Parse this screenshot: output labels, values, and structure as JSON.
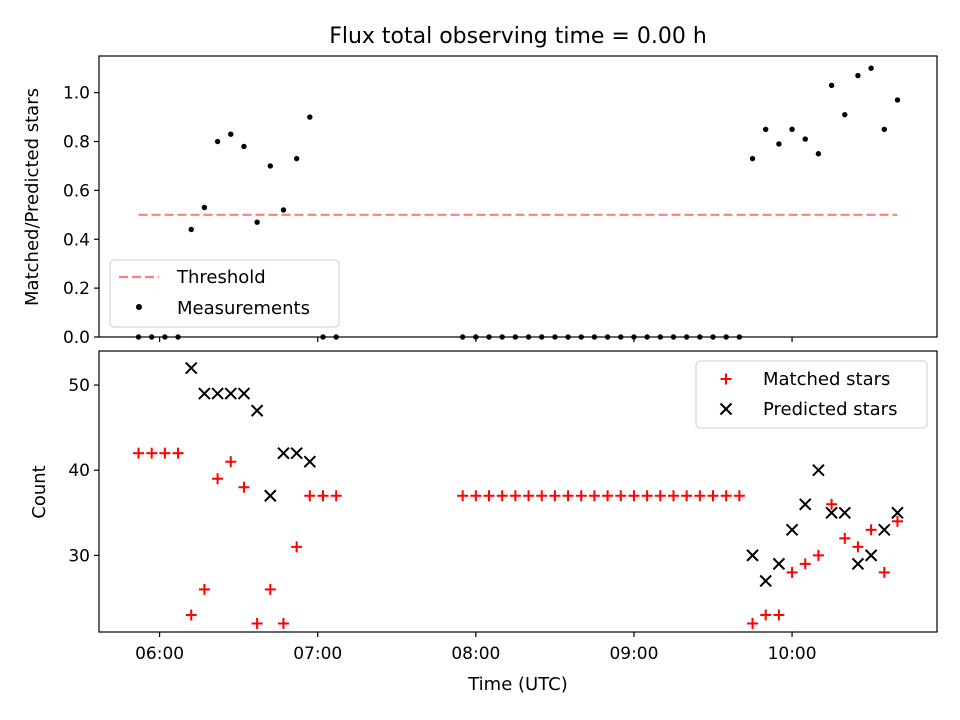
{
  "chart_data": [
    {
      "type": "scatter",
      "title": "Flux total observing time = 0.00 h",
      "xlabel": "",
      "ylabel": "Matched/Predicted stars",
      "ylim": [
        0,
        1.15
      ],
      "yticks": [
        "0.0",
        "0.2",
        "0.4",
        "0.6",
        "0.8",
        "1.0"
      ],
      "legend_position": "lower-left",
      "threshold": {
        "name": "Threshold",
        "value": 0.5,
        "x_start": "05:52",
        "x_end": "10:40",
        "color": "#ff7f7f",
        "style": "dashed"
      },
      "series": [
        {
          "name": "Measurements",
          "color": "#000000",
          "marker": "dot",
          "points": [
            [
              "05:52",
              0
            ],
            [
              "05:57",
              0
            ],
            [
              "06:02",
              0
            ],
            [
              "06:07",
              0
            ],
            [
              "06:12",
              0.44
            ],
            [
              "06:17",
              0.53
            ],
            [
              "06:22",
              0.8
            ],
            [
              "06:27",
              0.83
            ],
            [
              "06:32",
              0.78
            ],
            [
              "06:37",
              0.47
            ],
            [
              "06:42",
              0.7
            ],
            [
              "06:47",
              0.52
            ],
            [
              "06:52",
              0.73
            ],
            [
              "06:57",
              0.9
            ],
            [
              "07:02",
              0
            ],
            [
              "07:07",
              0
            ],
            [
              "07:55",
              0
            ],
            [
              "08:00",
              0
            ],
            [
              "08:05",
              0
            ],
            [
              "08:10",
              0
            ],
            [
              "08:15",
              0
            ],
            [
              "08:20",
              0
            ],
            [
              "08:25",
              0
            ],
            [
              "08:30",
              0
            ],
            [
              "08:35",
              0
            ],
            [
              "08:40",
              0
            ],
            [
              "08:45",
              0
            ],
            [
              "08:50",
              0
            ],
            [
              "08:55",
              0
            ],
            [
              "09:00",
              0
            ],
            [
              "09:05",
              0
            ],
            [
              "09:10",
              0
            ],
            [
              "09:15",
              0
            ],
            [
              "09:20",
              0
            ],
            [
              "09:25",
              0
            ],
            [
              "09:30",
              0
            ],
            [
              "09:35",
              0
            ],
            [
              "09:40",
              0
            ],
            [
              "09:45",
              0.73
            ],
            [
              "09:50",
              0.85
            ],
            [
              "09:55",
              0.79
            ],
            [
              "10:00",
              0.85
            ],
            [
              "10:05",
              0.81
            ],
            [
              "10:10",
              0.75
            ],
            [
              "10:15",
              1.03
            ],
            [
              "10:20",
              0.91
            ],
            [
              "10:25",
              1.07
            ],
            [
              "10:30",
              1.1
            ],
            [
              "10:35",
              0.85
            ],
            [
              "10:40",
              0.97
            ]
          ]
        }
      ]
    },
    {
      "type": "scatter",
      "title": "",
      "xlabel": "Time (UTC)",
      "ylabel": "Count",
      "ylim": [
        21,
        54
      ],
      "xlim": [
        "05:37",
        "10:55"
      ],
      "yticks": [
        "30",
        "40",
        "50"
      ],
      "xticks": [
        "06:00",
        "07:00",
        "08:00",
        "09:00",
        "10:00"
      ],
      "legend_position": "top-right",
      "series": [
        {
          "name": "Matched stars",
          "color": "#ff0000",
          "marker": "plus",
          "points": [
            [
              "05:52",
              42
            ],
            [
              "05:57",
              42
            ],
            [
              "06:02",
              42
            ],
            [
              "06:07",
              42
            ],
            [
              "06:12",
              23
            ],
            [
              "06:17",
              26
            ],
            [
              "06:22",
              39
            ],
            [
              "06:27",
              41
            ],
            [
              "06:32",
              38
            ],
            [
              "06:37",
              22
            ],
            [
              "06:42",
              26
            ],
            [
              "06:47",
              22
            ],
            [
              "06:52",
              31
            ],
            [
              "06:57",
              37
            ],
            [
              "07:02",
              37
            ],
            [
              "07:07",
              37
            ],
            [
              "07:55",
              37
            ],
            [
              "08:00",
              37
            ],
            [
              "08:05",
              37
            ],
            [
              "08:10",
              37
            ],
            [
              "08:15",
              37
            ],
            [
              "08:20",
              37
            ],
            [
              "08:25",
              37
            ],
            [
              "08:30",
              37
            ],
            [
              "08:35",
              37
            ],
            [
              "08:40",
              37
            ],
            [
              "08:45",
              37
            ],
            [
              "08:50",
              37
            ],
            [
              "08:55",
              37
            ],
            [
              "09:00",
              37
            ],
            [
              "09:05",
              37
            ],
            [
              "09:10",
              37
            ],
            [
              "09:15",
              37
            ],
            [
              "09:20",
              37
            ],
            [
              "09:25",
              37
            ],
            [
              "09:30",
              37
            ],
            [
              "09:35",
              37
            ],
            [
              "09:40",
              37
            ],
            [
              "09:45",
              22
            ],
            [
              "09:50",
              23
            ],
            [
              "09:55",
              23
            ],
            [
              "10:00",
              28
            ],
            [
              "10:05",
              29
            ],
            [
              "10:10",
              30
            ],
            [
              "10:15",
              36
            ],
            [
              "10:20",
              32
            ],
            [
              "10:25",
              31
            ],
            [
              "10:30",
              33
            ],
            [
              "10:35",
              28
            ],
            [
              "10:40",
              34
            ]
          ]
        },
        {
          "name": "Predicted stars",
          "color": "#000000",
          "marker": "x",
          "points": [
            [
              "06:12",
              52
            ],
            [
              "06:17",
              49
            ],
            [
              "06:22",
              49
            ],
            [
              "06:27",
              49
            ],
            [
              "06:32",
              49
            ],
            [
              "06:37",
              47
            ],
            [
              "06:42",
              37
            ],
            [
              "06:47",
              42
            ],
            [
              "06:52",
              42
            ],
            [
              "06:57",
              41
            ],
            [
              "09:45",
              30
            ],
            [
              "09:50",
              27
            ],
            [
              "09:55",
              29
            ],
            [
              "10:00",
              33
            ],
            [
              "10:05",
              36
            ],
            [
              "10:10",
              40
            ],
            [
              "10:15",
              35
            ],
            [
              "10:20",
              35
            ],
            [
              "10:25",
              29
            ],
            [
              "10:30",
              30
            ],
            [
              "10:35",
              33
            ],
            [
              "10:40",
              35
            ]
          ]
        }
      ]
    }
  ]
}
